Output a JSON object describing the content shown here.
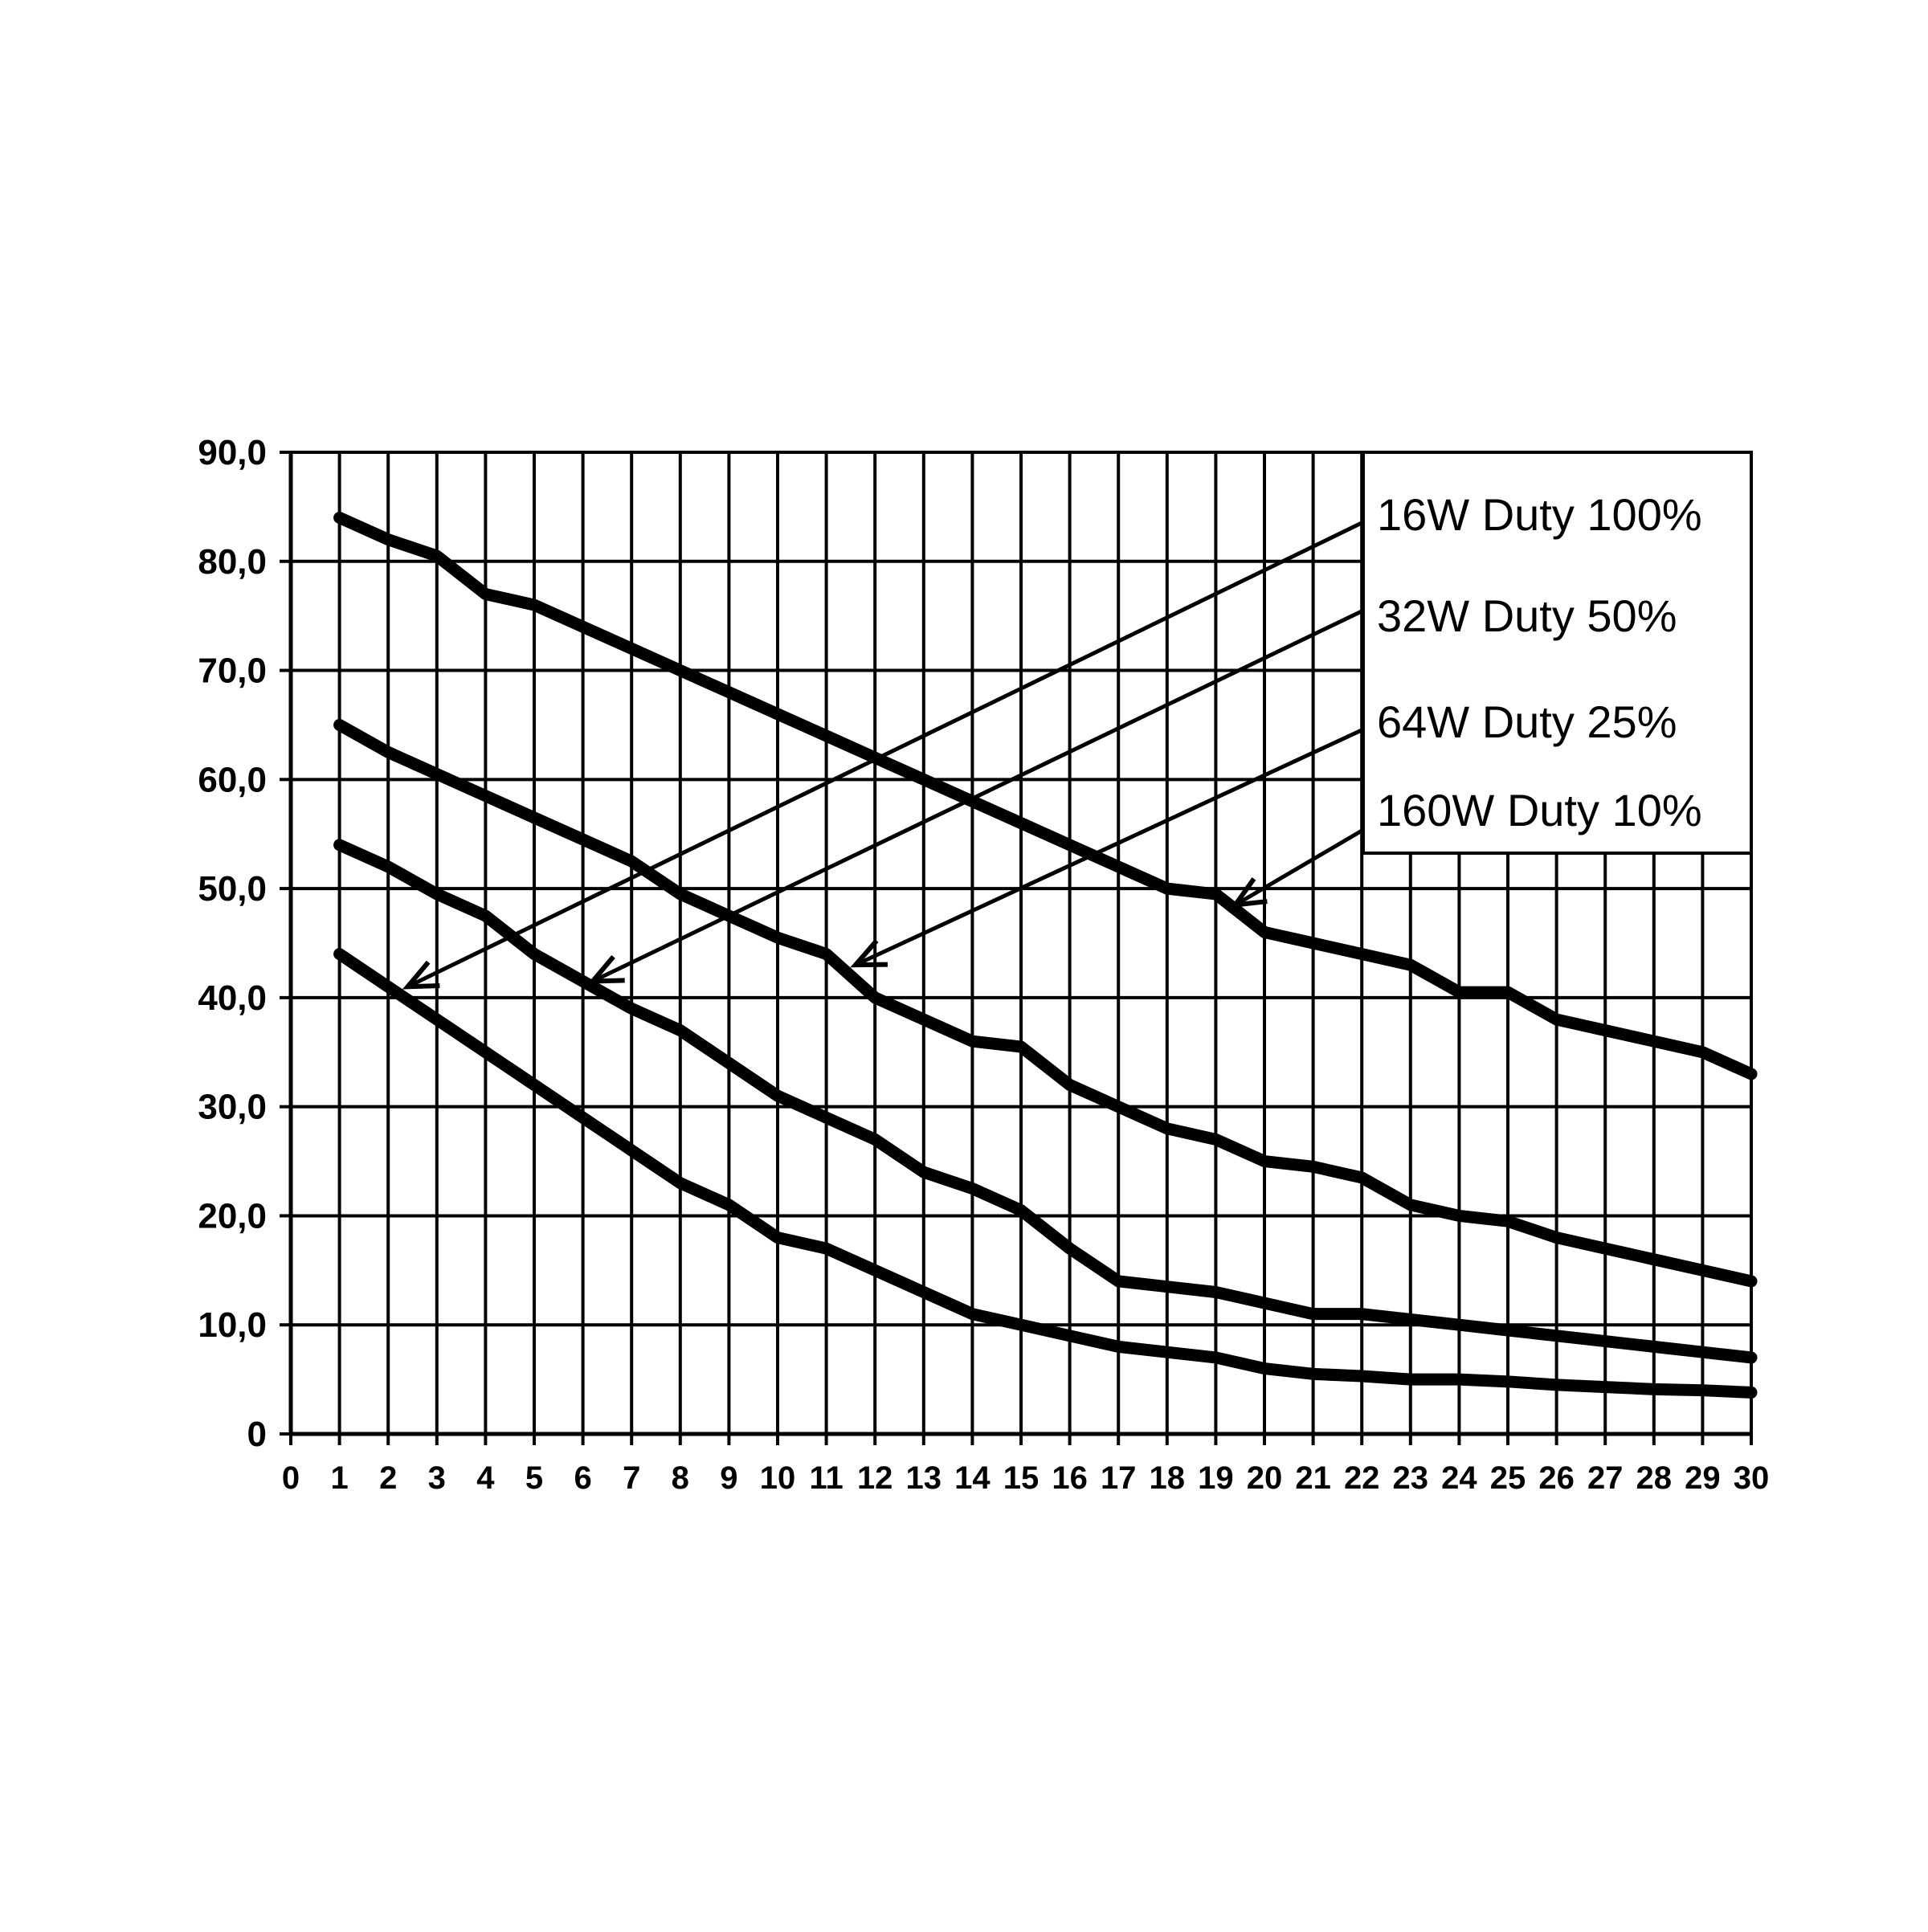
{
  "chart_data": {
    "type": "line",
    "title": "",
    "xlabel": "",
    "ylabel": "",
    "xlim": [
      0,
      30
    ],
    "ylim": [
      0,
      90
    ],
    "grid": true,
    "legend_position": "top-right",
    "x_ticks": [
      "0",
      "1",
      "2",
      "3",
      "4",
      "5",
      "6",
      "7",
      "8",
      "9",
      "10",
      "11",
      "12",
      "13",
      "14",
      "15",
      "16",
      "17",
      "18",
      "19",
      "20",
      "21",
      "22",
      "23",
      "24",
      "25",
      "26",
      "27",
      "28",
      "29",
      "30"
    ],
    "y_ticks": [
      "0",
      "10,0",
      "20,0",
      "30,0",
      "40,0",
      "50,0",
      "60,0",
      "70,0",
      "80,0",
      "90,0"
    ],
    "x": [
      1,
      2,
      3,
      4,
      5,
      6,
      7,
      8,
      9,
      10,
      11,
      12,
      13,
      14,
      15,
      16,
      17,
      18,
      19,
      20,
      21,
      22,
      23,
      24,
      25,
      26,
      27,
      28,
      29,
      30
    ],
    "series": [
      {
        "name": "16W   Duty  100%",
        "label_x": 2.4,
        "label_y": 41,
        "values": [
          84,
          82,
          80.5,
          77,
          76,
          74,
          72,
          70,
          68,
          66,
          64,
          62,
          60,
          58,
          56,
          54,
          52,
          50,
          49.5,
          46,
          45,
          44,
          43,
          40.5,
          40.5,
          38,
          37,
          36,
          35,
          33
        ]
      },
      {
        "name": "32W   Duty  50%",
        "label_x": 6.2,
        "label_y": 41.5,
        "values": [
          65,
          62.5,
          60.5,
          58.5,
          56.5,
          54.5,
          52.5,
          49.5,
          47.5,
          45.5,
          44,
          40,
          38,
          36,
          35.5,
          32,
          30,
          28,
          27,
          25,
          24.5,
          23.5,
          21,
          20,
          19.5,
          18,
          17,
          16,
          15,
          14
        ]
      },
      {
        "name": "64W   Duty  25%",
        "label_x": 11.6,
        "label_y": 43,
        "values": [
          54,
          52,
          49.5,
          47.5,
          44,
          41.5,
          39,
          37,
          34,
          31,
          29,
          27,
          24,
          22.5,
          20.5,
          17,
          14,
          13.5,
          13,
          12,
          11,
          11,
          10.5,
          10,
          9.5,
          9,
          8.5,
          8,
          7.5,
          7
        ]
      },
      {
        "name": "160W  Duty 10%",
        "label_x": 19.4,
        "label_y": 48.5,
        "values": [
          44,
          41,
          38,
          35,
          32,
          29,
          26,
          23,
          21,
          18,
          17,
          15,
          13,
          11,
          10,
          9,
          8,
          7.5,
          7,
          6,
          5.5,
          5.3,
          5,
          5,
          4.8,
          4.5,
          4.3,
          4.1,
          4,
          3.8
        ]
      }
    ]
  }
}
